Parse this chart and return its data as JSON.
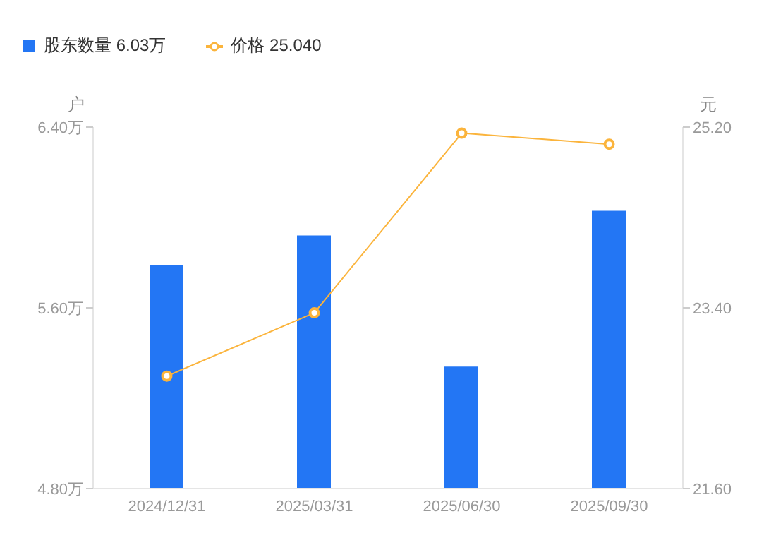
{
  "chart_data": {
    "type": "bar",
    "categories": [
      "2024/12/31",
      "2025/03/31",
      "2025/06/30",
      "2025/09/30"
    ],
    "series": [
      {
        "name": "股东数量 6.03万",
        "color": "#2376f4",
        "values": [
          5.79,
          5.92,
          5.34,
          6.03
        ]
      },
      {
        "name": "价格 25.040",
        "type": "line",
        "axis": "y2",
        "color": "#fbb43c",
        "values": [
          22.72,
          23.35,
          25.14,
          25.03
        ]
      }
    ],
    "ylabel": "户",
    "y2label": "元",
    "ylim": [
      4.8,
      6.4
    ],
    "yticks": [
      {
        "value": 4.8,
        "label": "4.80万"
      },
      {
        "value": 5.6,
        "label": "5.60万"
      },
      {
        "value": 6.4,
        "label": "6.40万"
      }
    ],
    "y2lim": [
      21.6,
      25.2
    ],
    "y2ticks": [
      {
        "value": 21.6,
        "label": "21.60"
      },
      {
        "value": 23.4,
        "label": "23.40"
      },
      {
        "value": 25.2,
        "label": "25.20"
      }
    ],
    "grid": false,
    "legend": "top left",
    "marker": "circle",
    "line_style": "solid"
  }
}
